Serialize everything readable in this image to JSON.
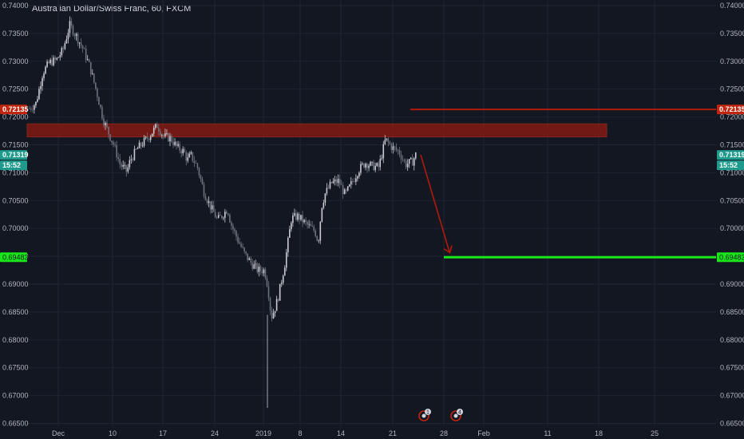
{
  "title": "Australian Dollar/Swiss Franc, 60, FXCM",
  "colors": {
    "background": "#131722",
    "grid": "#1f2433",
    "up_candle": "#c8cbd2",
    "down_candle": "#6d717c",
    "resistance_zone": "#8b1a12",
    "red_line": "#b31a0a",
    "target_line": "#19e619",
    "current_badge": "#1f9b8e",
    "red_badge": "#c0260f",
    "green_badge": "#19e619",
    "arrow": "#b31a0a"
  },
  "price_labels": {
    "red_level": "0.72135",
    "current_price": "0.71319",
    "countdown": "15:52",
    "target": "0.69483"
  },
  "event_markers": [
    {
      "icon": "event-flag-icon",
      "count": "1"
    },
    {
      "icon": "event-flag-icon",
      "count": "4"
    }
  ],
  "chart_data": {
    "type": "candlestick",
    "title": "Australian Dollar/Swiss Franc, 60, FXCM",
    "ylim": [
      0.6645,
      0.741
    ],
    "y_ticks": [
      "0.74000",
      "0.73500",
      "0.73000",
      "0.72500",
      "0.72000",
      "0.71500",
      "0.71000",
      "0.70500",
      "0.70000",
      "0.69500",
      "0.69000",
      "0.68500",
      "0.68000",
      "0.67500",
      "0.67000",
      "0.66500"
    ],
    "x_ticks": [
      "Dec",
      "10",
      "17",
      "24",
      "2019",
      "8",
      "14",
      "21",
      "28",
      "Feb",
      "11",
      "18",
      "25"
    ],
    "price_path": [
      [
        0,
        0.7215
      ],
      [
        2,
        0.7225
      ],
      [
        4,
        0.728
      ],
      [
        6,
        0.7298
      ],
      [
        8,
        0.7302
      ],
      [
        10,
        0.732
      ],
      [
        12,
        0.7365
      ],
      [
        14,
        0.7345
      ],
      [
        16,
        0.7322
      ],
      [
        18,
        0.729
      ],
      [
        20,
        0.7245
      ],
      [
        22,
        0.7195
      ],
      [
        24,
        0.7165
      ],
      [
        25,
        0.7152
      ],
      [
        27,
        0.7115
      ],
      [
        29,
        0.7102
      ],
      [
        30,
        0.7122
      ],
      [
        32,
        0.7142
      ],
      [
        34,
        0.7155
      ],
      [
        36,
        0.7168
      ],
      [
        38,
        0.7185
      ],
      [
        40,
        0.7165
      ],
      [
        42,
        0.7162
      ],
      [
        44,
        0.7145
      ],
      [
        46,
        0.7138
      ],
      [
        47,
        0.7122
      ],
      [
        48,
        0.7132
      ],
      [
        50,
        0.711
      ],
      [
        52,
        0.7065
      ],
      [
        54,
        0.7038
      ],
      [
        56,
        0.7015
      ],
      [
        58,
        0.7028
      ],
      [
        59,
        0.7035
      ],
      [
        60,
        0.7008
      ],
      [
        62,
        0.698
      ],
      [
        64,
        0.6955
      ],
      [
        66,
        0.6938
      ],
      [
        68,
        0.6925
      ],
      [
        70,
        0.6925
      ],
      [
        71,
        0.6895
      ],
      [
        72,
        0.684
      ],
      [
        73,
        0.6855
      ],
      [
        74,
        0.6875
      ],
      [
        76,
        0.6935
      ],
      [
        78,
        0.7018
      ],
      [
        80,
        0.7022
      ],
      [
        82,
        0.701
      ],
      [
        84,
        0.7
      ],
      [
        85,
        0.6995
      ],
      [
        86,
        0.6975
      ],
      [
        87,
        0.704
      ],
      [
        88,
        0.7062
      ],
      [
        90,
        0.7082
      ],
      [
        92,
        0.7085
      ],
      [
        94,
        0.706
      ],
      [
        96,
        0.7082
      ],
      [
        98,
        0.7105
      ],
      [
        100,
        0.7118
      ],
      [
        102,
        0.7112
      ],
      [
        104,
        0.711
      ],
      [
        106,
        0.716
      ],
      [
        108,
        0.7145
      ],
      [
        110,
        0.7138
      ],
      [
        112,
        0.7115
      ],
      [
        114,
        0.712
      ],
      [
        115,
        0.7132
      ]
    ],
    "price_range": [
      0.6675,
      0.7375
    ],
    "annotations": {
      "resistance_zone": [
        0.717,
        0.7182
      ],
      "red_horizontal_line": 0.72135,
      "target_line": 0.69483,
      "arrow": {
        "from": 0.7132,
        "to": 0.6955
      }
    }
  }
}
